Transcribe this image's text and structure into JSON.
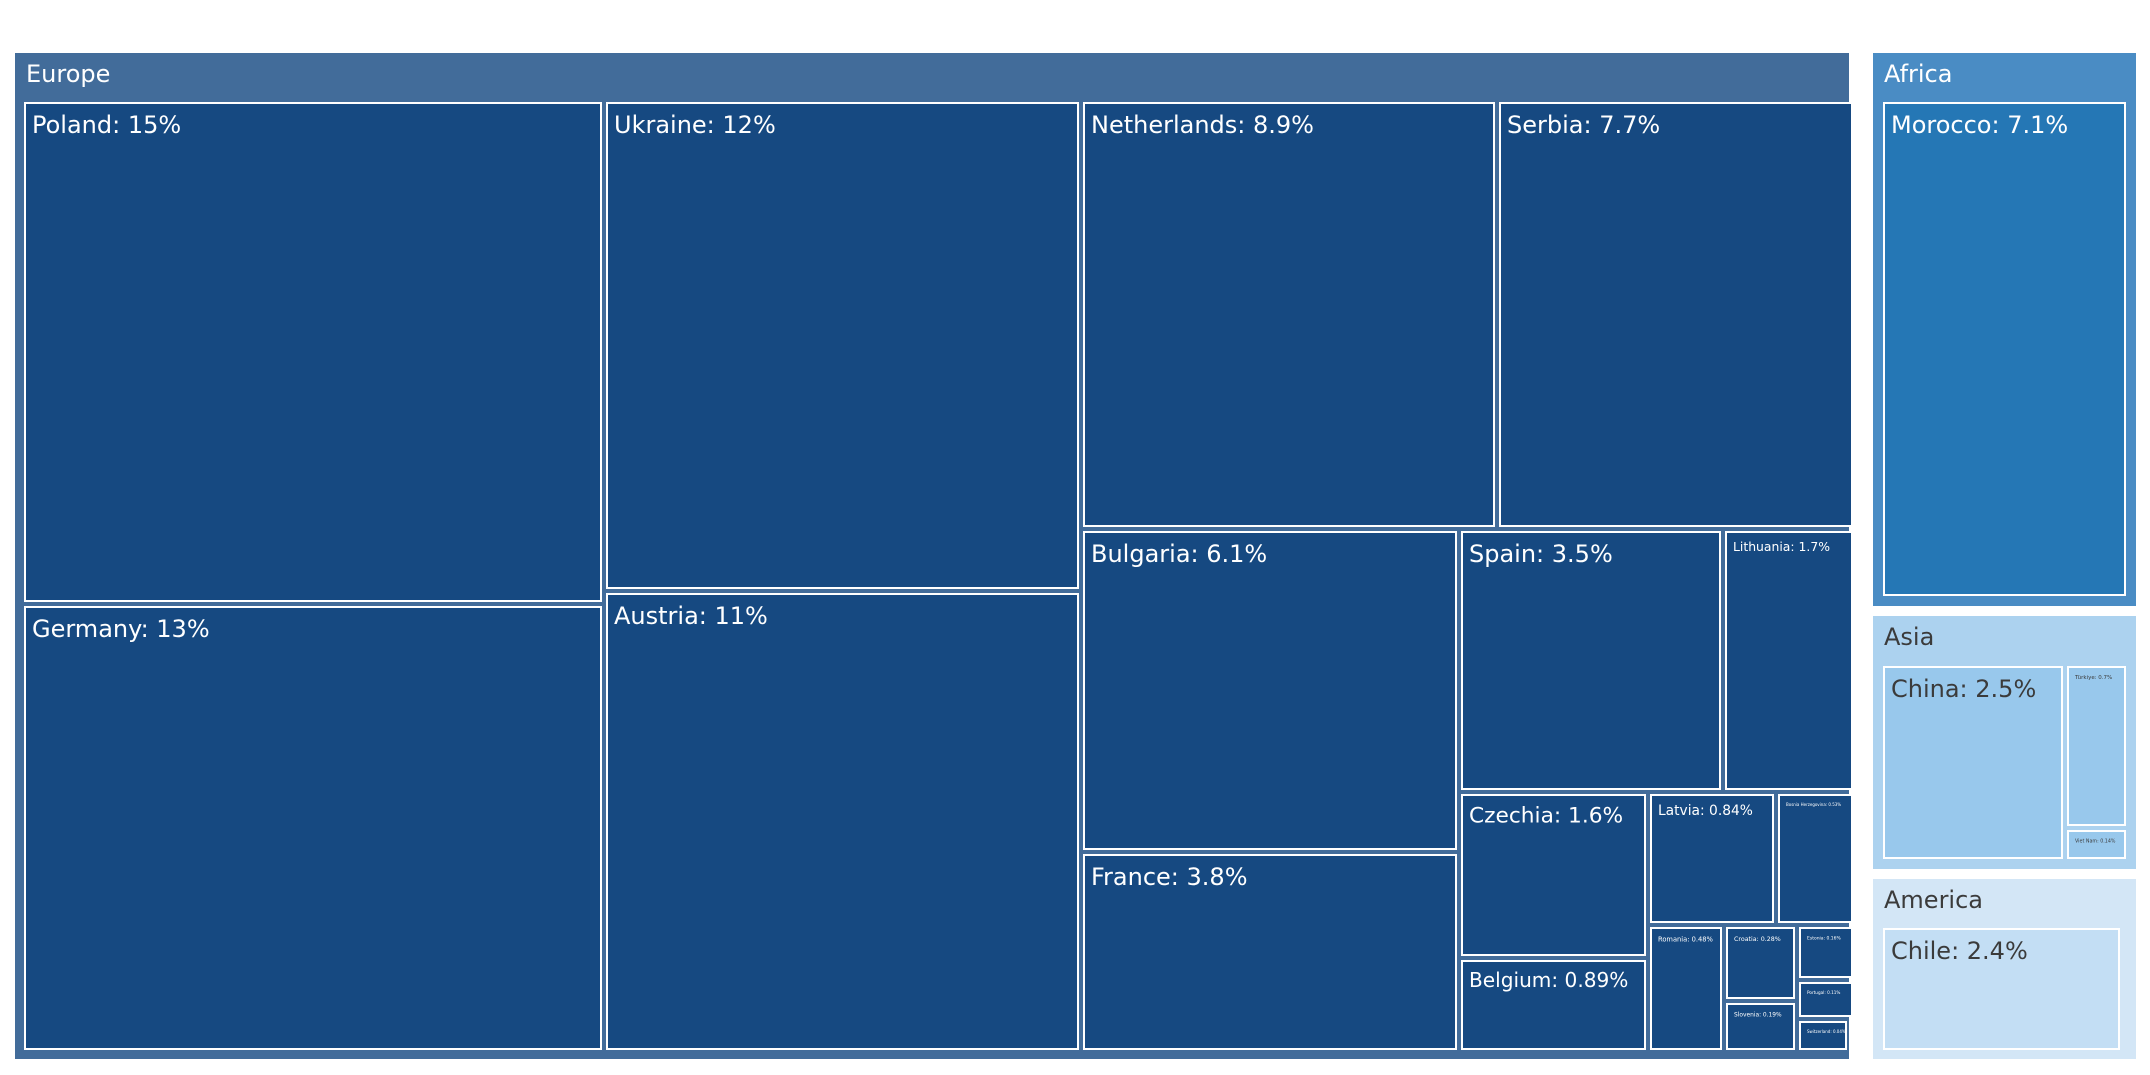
{
  "chart_data": {
    "type": "treemap",
    "groups": [
      {
        "name": "Europe",
        "color": "#426c9a",
        "leaf_color": "#164981",
        "text_color": "#ffffff",
        "children": [
          {
            "label": "Poland",
            "value": 15,
            "display": "Poland: 15%"
          },
          {
            "label": "Germany",
            "value": 13,
            "display": "Germany: 13%"
          },
          {
            "label": "Ukraine",
            "value": 12,
            "display": "Ukraine: 12%"
          },
          {
            "label": "Austria",
            "value": 11,
            "display": "Austria: 11%"
          },
          {
            "label": "Netherlands",
            "value": 8.9,
            "display": "Netherlands: 8.9%"
          },
          {
            "label": "Serbia",
            "value": 7.7,
            "display": "Serbia: 7.7%"
          },
          {
            "label": "Bulgaria",
            "value": 6.1,
            "display": "Bulgaria: 6.1%"
          },
          {
            "label": "France",
            "value": 3.8,
            "display": "France: 3.8%"
          },
          {
            "label": "Spain",
            "value": 3.5,
            "display": "Spain: 3.5%"
          },
          {
            "label": "Lithuania",
            "value": 1.7,
            "display": "Lithuania: 1.7%"
          },
          {
            "label": "Czechia",
            "value": 1.6,
            "display": "Czechia: 1.6%"
          },
          {
            "label": "Latvia",
            "value": 0.84,
            "display": "Latvia: 0.84%"
          },
          {
            "label": "Bosnia Herzegovina",
            "value": 0.53,
            "display": "Bosnia Herzegovina: 0.53%"
          },
          {
            "label": "Belgium",
            "value": 0.89,
            "display": "Belgium: 0.89%"
          },
          {
            "label": "Romania",
            "value": 0.48,
            "display": "Romania: 0.48%"
          },
          {
            "label": "Croatia",
            "value": 0.28,
            "display": "Croatia: 0.28%"
          },
          {
            "label": "Slovenia",
            "value": 0.19,
            "display": "Slovenia: 0.19%"
          },
          {
            "label": "Estonia",
            "value": 0.16,
            "display": "Estonia: 0.16%"
          },
          {
            "label": "Portugal",
            "value": 0.11,
            "display": "Portugal: 0.11%"
          },
          {
            "label": "Switzerland",
            "value": 0.04,
            "display": "Switzerland: 0.04%"
          }
        ]
      },
      {
        "name": "Africa",
        "color": "#4a8cc4",
        "leaf_color": "#2577b5",
        "text_color": "#ffffff",
        "children": [
          {
            "label": "Morocco",
            "value": 7.1,
            "display": "Morocco: 7.1%"
          }
        ]
      },
      {
        "name": "Asia",
        "color": "#acd2ef",
        "leaf_color": "#98c8ec",
        "text_color": "#3b3b3b",
        "children": [
          {
            "label": "China",
            "value": 2.5,
            "display": "China: 2.5%"
          },
          {
            "label": "Türkiye",
            "value": 0.7,
            "display": "Türkiye: 0.7%"
          },
          {
            "label": "Viet Nam",
            "value": 0.14,
            "display": "Viet Nam: 0.14%"
          }
        ]
      },
      {
        "name": "America",
        "color": "#d3e6f6",
        "leaf_color": "#c3def4",
        "text_color": "#3b3b3b",
        "children": [
          {
            "label": "Chile",
            "value": 2.4,
            "display": "Chile: 2.4%"
          }
        ]
      }
    ]
  }
}
